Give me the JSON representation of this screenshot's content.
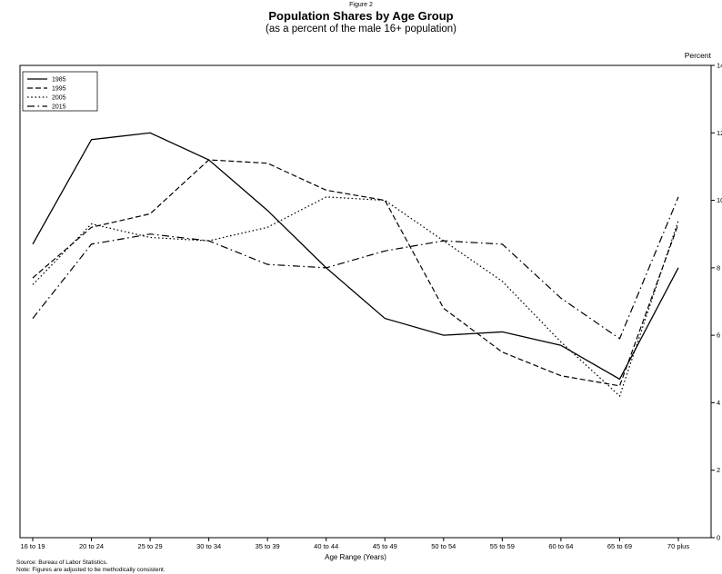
{
  "chart_data": {
    "type": "line",
    "figure_label": "Figure 2",
    "title": "Population Shares by Age Group",
    "subtitle": "(as a percent of the male 16+ population)",
    "xlabel": "Age Range (Years)",
    "ylabel": "Percent",
    "ylim": [
      0,
      14
    ],
    "yticks": [
      0,
      2,
      4,
      6,
      8,
      10,
      12,
      14
    ],
    "grid": false,
    "legend_position": "top-left",
    "categories": [
      "16 to 19",
      "20 to 24",
      "25 to 29",
      "30 to 34",
      "35 to 39",
      "40 to 44",
      "45 to 49",
      "50 to 54",
      "55 to 59",
      "60 to 64",
      "65 to 69",
      "70 plus"
    ],
    "series": [
      {
        "name": "1985",
        "style": "solid",
        "color": "#000000",
        "values": [
          8.7,
          11.8,
          12.0,
          11.2,
          9.7,
          8.0,
          6.5,
          6.0,
          6.1,
          5.7,
          4.7,
          8.0
        ]
      },
      {
        "name": "1995",
        "style": "dashed",
        "color": "#000000",
        "values": [
          7.7,
          9.2,
          9.6,
          11.2,
          11.1,
          10.3,
          10.0,
          6.8,
          5.5,
          4.8,
          4.5,
          9.3
        ]
      },
      {
        "name": "2005",
        "style": "dotted",
        "color": "#000000",
        "values": [
          7.5,
          9.3,
          8.9,
          8.8,
          9.2,
          10.1,
          10.0,
          8.8,
          7.6,
          5.8,
          4.2,
          9.4
        ]
      },
      {
        "name": "2015",
        "style": "dashdot",
        "color": "#000000",
        "values": [
          6.5,
          8.7,
          9.0,
          8.8,
          8.1,
          8.0,
          8.5,
          8.8,
          8.7,
          7.1,
          5.9,
          10.1
        ]
      }
    ],
    "notes": [
      "Source: Bureau of Labor Statistics.",
      "Note: Figures are adjusted to be methodically consistent."
    ]
  }
}
